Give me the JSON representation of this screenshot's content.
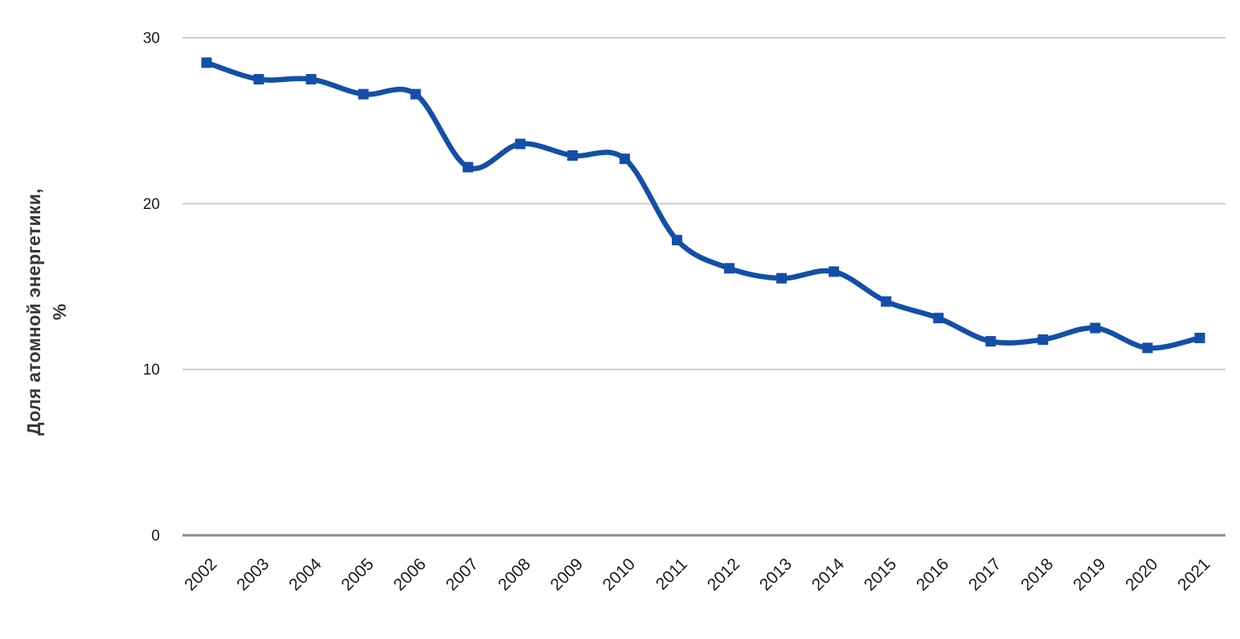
{
  "chart_data": {
    "type": "line",
    "title": "",
    "ylabel_lines": [
      "Доля атомной энергетики,",
      "%"
    ],
    "ylabel": "Доля атомной энергетики, %",
    "xlabel": "",
    "categories": [
      "2002",
      "2003",
      "2004",
      "2005",
      "2006",
      "2007",
      "2008",
      "2009",
      "2010",
      "2011",
      "2012",
      "2013",
      "2014",
      "2015",
      "2016",
      "2017",
      "2018",
      "2019",
      "2020",
      "2021"
    ],
    "series": [
      {
        "name": "Доля атомной энергетики, %",
        "values": [
          28.5,
          27.5,
          27.5,
          26.6,
          26.6,
          22.2,
          23.6,
          22.9,
          22.7,
          17.8,
          16.1,
          15.5,
          15.9,
          14.1,
          13.1,
          11.7,
          11.8,
          12.5,
          11.3,
          11.9
        ]
      }
    ],
    "ylim": [
      0,
      30
    ],
    "yticks": [
      0,
      10,
      20,
      30
    ],
    "grid": "horizontal",
    "legend_position": "none",
    "marker": "square",
    "smooth": true,
    "colors": {
      "line": "#134fa8",
      "grid": "#cccccc",
      "axis": "#8a8a8a",
      "tick_text": "#1a1a1a",
      "axis_title_text": "#383838"
    }
  }
}
